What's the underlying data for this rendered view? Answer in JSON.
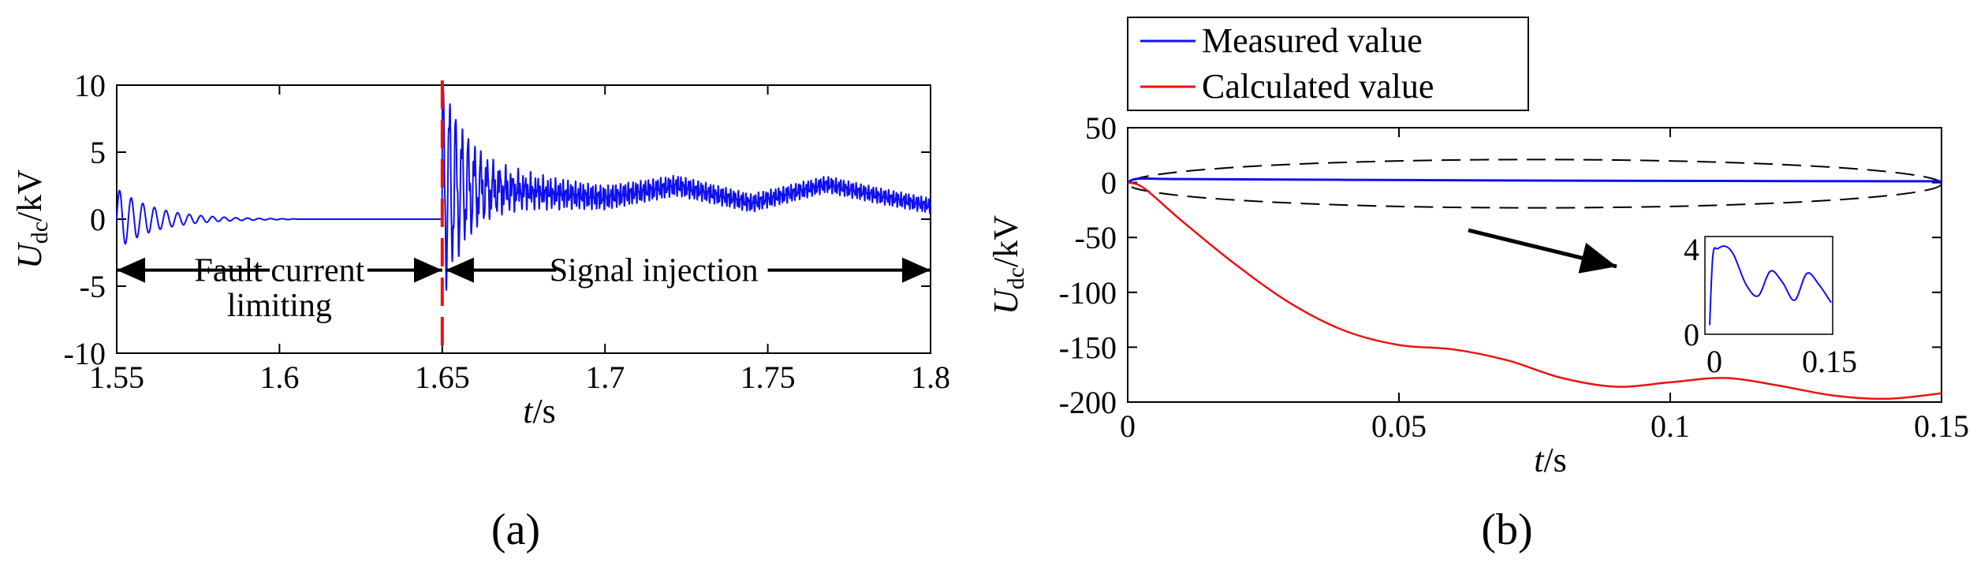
{
  "chart_data": [
    {
      "type": "line",
      "panel_label": "(a)",
      "xlabel": {
        "italic": "t",
        "unit": "/s"
      },
      "ylabel": {
        "italic": "U",
        "sub": "dc",
        "unit": "/kV"
      },
      "xlim": [
        1.55,
        1.8
      ],
      "ylim": [
        -10,
        10
      ],
      "xticks": [
        1.55,
        1.6,
        1.65,
        1.7,
        1.75,
        1.8
      ],
      "xtick_labels": [
        "1.55",
        "1.6",
        "1.65",
        "1.7",
        "1.75",
        "1.8"
      ],
      "yticks": [
        10,
        5,
        0,
        -5,
        -10
      ],
      "ytick_labels": [
        "10",
        "5",
        "0",
        "-5",
        "-10"
      ],
      "grid": false,
      "colors": {
        "signal": "#1010ee",
        "marker": "#ee1111"
      },
      "series": [
        {
          "name": "Udc",
          "segments": [
            {
              "kind": "decaying_oscillation",
              "t_start": 1.55,
              "t_end": 1.65,
              "amplitude_start": 2.3,
              "decay_end": 1.6,
              "offset": 0
            },
            {
              "kind": "flat",
              "t_start": 1.6,
              "t_end": 1.65,
              "value": 0
            },
            {
              "kind": "decaying_oscillation",
              "t_start": 1.65,
              "t_end": 1.8,
              "amplitude_start": 7.5,
              "baseline": [
                [
                  1.65,
                  2.5
                ],
                [
                  1.675,
                  2.1
                ],
                [
                  1.7,
                  1.6
                ],
                [
                  1.722,
                  2.5
                ],
                [
                  1.745,
                  1.2
                ],
                [
                  1.768,
                  2.6
                ],
                [
                  1.785,
                  1.7
                ],
                [
                  1.8,
                  1.0
                ]
              ]
            }
          ]
        }
      ],
      "vertical_marker": {
        "x": 1.65,
        "style": "dashed"
      },
      "annotations": [
        {
          "text": "Fault current",
          "x": 1.6,
          "y": -3.8
        },
        {
          "text": "limiting",
          "x": 1.6,
          "y": -6.4
        },
        {
          "text": "Signal injection",
          "x": 1.715,
          "y": -3.8
        }
      ],
      "arrows": [
        {
          "from": 1.597,
          "to": 1.55,
          "y": -3.8
        },
        {
          "from": 1.627,
          "to": 1.65,
          "y": -3.8
        },
        {
          "from": 1.685,
          "to": 1.651,
          "y": -3.8
        },
        {
          "from": 1.75,
          "to": 1.8,
          "y": -3.8
        }
      ]
    },
    {
      "type": "line",
      "panel_label": "(b)",
      "xlabel": {
        "italic": "t",
        "unit": "/s"
      },
      "ylabel": {
        "italic": "U",
        "sub": "dc",
        "unit": "/kV"
      },
      "xlim": [
        0,
        0.15
      ],
      "ylim": [
        -200,
        50
      ],
      "xticks": [
        0,
        0.05,
        0.1,
        0.15
      ],
      "xtick_labels": [
        "0",
        "0.05",
        "0.1",
        "0.15"
      ],
      "yticks": [
        50,
        0,
        -50,
        -100,
        -150,
        -200
      ],
      "ytick_labels": [
        "50",
        "0",
        "-50",
        "-100",
        "-150",
        "-200"
      ],
      "grid": false,
      "legend": {
        "position": "top-left-outside",
        "entries": [
          "Measured value",
          "Calculated value"
        ]
      },
      "series": [
        {
          "name": "Measured value",
          "color": "#1010ee",
          "x": [
            0,
            0.002,
            0.01,
            0.04,
            0.08,
            0.11,
            0.15
          ],
          "y": [
            0,
            3.5,
            3.2,
            2.5,
            1.8,
            1.5,
            1.2
          ]
        },
        {
          "name": "Calculated value",
          "color": "#ee1111",
          "x": [
            0,
            0.003,
            0.01,
            0.02,
            0.03,
            0.04,
            0.05,
            0.06,
            0.07,
            0.08,
            0.09,
            0.1,
            0.11,
            0.12,
            0.13,
            0.14,
            0.15
          ],
          "y": [
            0,
            -5,
            -35,
            -75,
            -110,
            -135,
            -148,
            -152,
            -162,
            -178,
            -186,
            -182,
            -178,
            -185,
            -194,
            -197,
            -192
          ]
        }
      ],
      "ellipse": {
        "cx": 0.075,
        "cy": -1,
        "rx": 0.075,
        "ry": 22,
        "style": "dashed"
      },
      "inset": {
        "xlim": [
          0,
          0.15
        ],
        "ylim": [
          0,
          4
        ],
        "xtick_labels": [
          "0",
          "0.15"
        ],
        "ytick_labels": [
          "4",
          "0"
        ],
        "series": {
          "x": [
            0,
            0.004,
            0.01,
            0.02,
            0.03,
            0.045,
            0.06,
            0.075,
            0.09,
            0.105,
            0.12,
            0.135,
            0.15
          ],
          "y": [
            0.2,
            3.3,
            3.6,
            3.7,
            3.3,
            2.0,
            1.5,
            2.6,
            2.1,
            1.3,
            2.5,
            2.0,
            1.2
          ]
        }
      }
    }
  ]
}
